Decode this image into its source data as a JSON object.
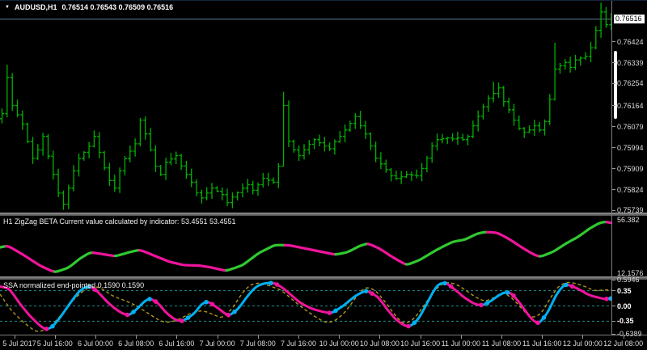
{
  "header": {
    "symbol": "AUDUSD,H1",
    "quotes": "0.76514 0.76543 0.76509 0.76516"
  },
  "zigzag": {
    "title": "H1 ZigZag BETA Current value calculated by indicator: 53.4551 53.4551",
    "axis_max": "56.382",
    "axis_min": "12.1576",
    "current_value": "53.4551 53.4551"
  },
  "ssa": {
    "title": "SSA normalized end-pointed 0.1590 0.1590",
    "axis_labels": [
      "0.5946",
      "0.35",
      "0.00",
      "-0.35",
      "-0.6389"
    ],
    "current_value": "0.1590 0.1590"
  },
  "price_axis": {
    "current": "0.76516",
    "ticks": [
      "0.76424",
      "0.76339",
      "0.76254",
      "0.76164",
      "0.76079",
      "0.75994",
      "0.75909",
      "0.75824",
      "0.75739"
    ]
  },
  "time_axis": {
    "labels": [
      "5 Jul 2017",
      "5 Jul 16:00",
      "6 Jul 00:00",
      "6 Jul 08:00",
      "6 Jul 16:00",
      "7 Jul 00:00",
      "7 Jul 08:00",
      "7 Jul 16:00",
      "10 Jul 00:00",
      "10 Jul 08:00",
      "10 Jul 16:00",
      "11 Jul 00:00",
      "11 Jul 08:00",
      "11 Jul 16:00",
      "12 Jul 00:00",
      "12 Jul 08:00"
    ]
  },
  "colors": {
    "background": "#000000",
    "bar_green": "#00b200",
    "price_line": "#4f6475",
    "zig_up": "#30c930",
    "zig_down": "#f0149c",
    "ssa_up": "#00b0f0",
    "ssa_down": "#f0149c",
    "gold_dashed": "#b0971a",
    "level_teal": "#1f8f8f",
    "axis_text": "#dcdcdc",
    "separator": "#787878"
  },
  "chart_data": [
    {
      "id": "price",
      "type": "ohlc-bars",
      "symbol": "AUDUSD",
      "timeframe": "H1",
      "bar_count": 120,
      "y_current": 0.76516,
      "y_ticks": [
        0.76424,
        0.76339,
        0.76254,
        0.76164,
        0.76079,
        0.75994,
        0.75909,
        0.75824,
        0.75739
      ],
      "close_anchors": [
        [
          0,
          0.76132
        ],
        [
          1,
          0.7628
        ],
        [
          2,
          0.76165
        ],
        [
          4,
          0.7609
        ],
        [
          5,
          0.76018
        ],
        [
          6,
          0.75952
        ],
        [
          7,
          0.75985
        ],
        [
          8,
          0.7604
        ],
        [
          9,
          0.7596
        ],
        [
          10,
          0.75886
        ],
        [
          11,
          0.7581
        ],
        [
          12,
          0.75765
        ],
        [
          13,
          0.7583
        ],
        [
          14,
          0.759
        ],
        [
          15,
          0.7595
        ],
        [
          17,
          0.76
        ],
        [
          18,
          0.7604
        ],
        [
          19,
          0.75975
        ],
        [
          20,
          0.75912
        ],
        [
          21,
          0.75861
        ],
        [
          22,
          0.7583
        ],
        [
          23,
          0.759
        ],
        [
          24,
          0.7595
        ],
        [
          26,
          0.7601
        ],
        [
          27,
          0.76106
        ],
        [
          28,
          0.7605
        ],
        [
          29,
          0.75985
        ],
        [
          30,
          0.75919
        ],
        [
          31,
          0.75886
        ],
        [
          32,
          0.75935
        ],
        [
          34,
          0.75962
        ],
        [
          35,
          0.7592
        ],
        [
          36,
          0.75886
        ],
        [
          37,
          0.75854
        ],
        [
          38,
          0.75811
        ],
        [
          39,
          0.7579
        ],
        [
          41,
          0.7583
        ],
        [
          43,
          0.75804
        ],
        [
          44,
          0.75771
        ],
        [
          45,
          0.75794
        ],
        [
          47,
          0.7583
        ],
        [
          48,
          0.75844
        ],
        [
          49,
          0.75821
        ],
        [
          50,
          0.75844
        ],
        [
          51,
          0.7587
        ],
        [
          53,
          0.75854
        ],
        [
          54,
          0.75919
        ],
        [
          55,
          0.76165
        ],
        [
          56,
          0.7602
        ],
        [
          57,
          0.75985
        ],
        [
          58,
          0.75962
        ],
        [
          59,
          0.75985
        ],
        [
          60,
          0.76008
        ],
        [
          61,
          0.76027
        ],
        [
          63,
          0.76001
        ],
        [
          64,
          0.7599
        ],
        [
          65,
          0.76018
        ],
        [
          66,
          0.7604
        ],
        [
          67,
          0.76066
        ],
        [
          69,
          0.7612
        ],
        [
          70,
          0.76083
        ],
        [
          71,
          0.7605
        ],
        [
          72,
          0.76001
        ],
        [
          73,
          0.75952
        ],
        [
          75,
          0.75905
        ],
        [
          76,
          0.7588
        ],
        [
          77,
          0.7587
        ],
        [
          78,
          0.75876
        ],
        [
          79,
          0.75886
        ],
        [
          81,
          0.7588
        ],
        [
          82,
          0.7591
        ],
        [
          83,
          0.75952
        ],
        [
          84,
          0.76001
        ],
        [
          85,
          0.76027
        ],
        [
          87,
          0.76034
        ],
        [
          88,
          0.7603
        ],
        [
          89,
          0.76034
        ],
        [
          90,
          0.76027
        ],
        [
          91,
          0.7604
        ],
        [
          92,
          0.76083
        ],
        [
          94,
          0.7616
        ],
        [
          95,
          0.76195
        ],
        [
          96,
          0.76214
        ],
        [
          97,
          0.76237
        ],
        [
          98,
          0.76181
        ],
        [
          99,
          0.76148
        ],
        [
          100,
          0.76106
        ],
        [
          101,
          0.76073
        ],
        [
          102,
          0.76057
        ],
        [
          103,
          0.76066
        ],
        [
          104,
          0.76083
        ],
        [
          105,
          0.76066
        ],
        [
          106,
          0.761
        ],
        [
          107,
          0.7619
        ],
        [
          108,
          0.76313
        ],
        [
          110,
          0.7634
        ],
        [
          111,
          0.7632
        ],
        [
          112,
          0.7635
        ],
        [
          114,
          0.76365
        ],
        [
          115,
          0.764
        ],
        [
          116,
          0.7647
        ],
        [
          117,
          0.76545
        ],
        [
          118,
          0.76493
        ],
        [
          119,
          0.76516
        ]
      ],
      "range_overrides": {
        "1": {
          "high": 0.76331
        },
        "12": {
          "low": 0.75742
        },
        "44": {
          "low": 0.75757
        },
        "55": {
          "high": 0.76221,
          "low": 0.75918
        },
        "96": {
          "high": 0.76262
        },
        "108": {
          "high": 0.7642,
          "low": 0.76185
        },
        "117": {
          "high": 0.76582,
          "low": 0.7644
        }
      }
    },
    {
      "id": "zigzag",
      "type": "line",
      "y_max": 56.382,
      "y_min": 12.1576,
      "anchors": [
        [
          0,
          33.6
        ],
        [
          10,
          34.9
        ],
        [
          30,
          26.9
        ],
        [
          50,
          18.2
        ],
        [
          68,
          12.8
        ],
        [
          85,
          16.8
        ],
        [
          100,
          24.9
        ],
        [
          112,
          29.6
        ],
        [
          125,
          28.2
        ],
        [
          143,
          26.2
        ],
        [
          160,
          29.6
        ],
        [
          173,
          31.6
        ],
        [
          190,
          26.9
        ],
        [
          210,
          21.5
        ],
        [
          228,
          18.8
        ],
        [
          247,
          18.5
        ],
        [
          262,
          16.8
        ],
        [
          280,
          14.1
        ],
        [
          300,
          18.8
        ],
        [
          320,
          28.9
        ],
        [
          340,
          35.6
        ],
        [
          358,
          35.3
        ],
        [
          380,
          32.3
        ],
        [
          400,
          29.6
        ],
        [
          415,
          27.5
        ],
        [
          430,
          29.6
        ],
        [
          445,
          34.9
        ],
        [
          455,
          36.9
        ],
        [
          470,
          32.3
        ],
        [
          485,
          25.6
        ],
        [
          503,
          18.8
        ],
        [
          520,
          23.5
        ],
        [
          540,
          31.6
        ],
        [
          560,
          38.3
        ],
        [
          575,
          40.0
        ],
        [
          590,
          45.0
        ],
        [
          600,
          46.4
        ],
        [
          615,
          45.7
        ],
        [
          630,
          40.3
        ],
        [
          645,
          33.6
        ],
        [
          660,
          27.6
        ],
        [
          668,
          25.6
        ],
        [
          685,
          30.3
        ],
        [
          700,
          36.9
        ],
        [
          715,
          42.3
        ],
        [
          730,
          49.7
        ],
        [
          742,
          54.1
        ],
        [
          750,
          54.9
        ],
        [
          757,
          53.5
        ]
      ]
    },
    {
      "id": "ssa",
      "type": "line+dashed",
      "levels": [
        0.35,
        0.0,
        -0.35
      ],
      "y_max": 0.5946,
      "y_min": -0.6389,
      "main_anchors": [
        [
          0,
          0.45
        ],
        [
          12,
          0.39
        ],
        [
          25,
          0.04
        ],
        [
          38,
          -0.25
        ],
        [
          50,
          -0.46
        ],
        [
          57,
          -0.55
        ],
        [
          65,
          -0.48
        ],
        [
          75,
          -0.25
        ],
        [
          88,
          0.1
        ],
        [
          98,
          0.34
        ],
        [
          105,
          0.43
        ],
        [
          112,
          0.45
        ],
        [
          122,
          0.31
        ],
        [
          132,
          0.1
        ],
        [
          142,
          -0.06
        ],
        [
          152,
          -0.18
        ],
        [
          160,
          -0.22
        ],
        [
          170,
          -0.06
        ],
        [
          180,
          0.13
        ],
        [
          186,
          0.18
        ],
        [
          196,
          0.06
        ],
        [
          206,
          -0.17
        ],
        [
          216,
          -0.31
        ],
        [
          225,
          -0.36
        ],
        [
          240,
          -0.18
        ],
        [
          250,
          0.06
        ],
        [
          257,
          0.11
        ],
        [
          268,
          -0.03
        ],
        [
          283,
          -0.24
        ],
        [
          295,
          -0.06
        ],
        [
          305,
          0.2
        ],
        [
          313,
          0.38
        ],
        [
          320,
          0.48
        ],
        [
          330,
          0.53
        ],
        [
          340,
          0.52
        ],
        [
          350,
          0.41
        ],
        [
          360,
          0.25
        ],
        [
          372,
          0.06
        ],
        [
          385,
          -0.06
        ],
        [
          398,
          -0.13
        ],
        [
          410,
          -0.17
        ],
        [
          425,
          0.01
        ],
        [
          440,
          0.24
        ],
        [
          453,
          0.36
        ],
        [
          468,
          0.2
        ],
        [
          480,
          -0.11
        ],
        [
          490,
          -0.32
        ],
        [
          500,
          -0.45
        ],
        [
          507,
          -0.48
        ],
        [
          518,
          -0.29
        ],
        [
          528,
          0.06
        ],
        [
          538,
          0.41
        ],
        [
          544,
          0.53
        ],
        [
          553,
          0.52
        ],
        [
          562,
          0.38
        ],
        [
          575,
          0.18
        ],
        [
          587,
          0.04
        ],
        [
          597,
          0.01
        ],
        [
          607,
          0.11
        ],
        [
          617,
          0.25
        ],
        [
          625,
          0.32
        ],
        [
          633,
          0.29
        ],
        [
          645,
          0.01
        ],
        [
          655,
          -0.25
        ],
        [
          662,
          -0.38
        ],
        [
          667,
          -0.41
        ],
        [
          678,
          -0.13
        ],
        [
          688,
          0.27
        ],
        [
          697,
          0.48
        ],
        [
          700,
          0.5
        ],
        [
          708,
          0.45
        ],
        [
          718,
          0.36
        ],
        [
          728,
          0.25
        ],
        [
          738,
          0.2
        ],
        [
          748,
          0.155
        ],
        [
          757,
          0.175
        ]
      ],
      "gold_anchors": [
        [
          0,
          0.27
        ],
        [
          15,
          -0.13
        ],
        [
          30,
          -0.39
        ],
        [
          45,
          -0.6
        ],
        [
          60,
          -0.53
        ],
        [
          75,
          -0.22
        ],
        [
          90,
          0.13
        ],
        [
          105,
          0.38
        ],
        [
          115,
          0.46
        ],
        [
          125,
          0.41
        ],
        [
          140,
          0.22
        ],
        [
          152,
          0.14
        ],
        [
          165,
          0.04
        ],
        [
          180,
          -0.13
        ],
        [
          195,
          -0.31
        ],
        [
          205,
          -0.39
        ],
        [
          220,
          -0.32
        ],
        [
          235,
          -0.17
        ],
        [
          250,
          -0.1
        ],
        [
          262,
          -0.18
        ],
        [
          275,
          -0.29
        ],
        [
          288,
          -0.04
        ],
        [
          300,
          0.31
        ],
        [
          310,
          0.5
        ],
        [
          322,
          0.53
        ],
        [
          335,
          0.45
        ],
        [
          348,
          0.36
        ],
        [
          360,
          0.17
        ],
        [
          375,
          -0.06
        ],
        [
          390,
          -0.25
        ],
        [
          403,
          -0.39
        ],
        [
          415,
          -0.34
        ],
        [
          428,
          -0.12
        ],
        [
          440,
          0.2
        ],
        [
          452,
          0.45
        ],
        [
          465,
          0.35
        ],
        [
          478,
          0.05
        ],
        [
          490,
          -0.25
        ],
        [
          500,
          -0.43
        ],
        [
          512,
          -0.3
        ],
        [
          522,
          -0.05
        ],
        [
          532,
          0.22
        ],
        [
          542,
          0.45
        ],
        [
          552,
          0.55
        ],
        [
          564,
          0.5
        ],
        [
          576,
          0.36
        ],
        [
          588,
          0.2
        ],
        [
          600,
          0.1
        ],
        [
          612,
          0.2
        ],
        [
          622,
          0.33
        ],
        [
          635,
          0.15
        ],
        [
          648,
          -0.12
        ],
        [
          658,
          -0.29
        ],
        [
          670,
          -0.17
        ],
        [
          680,
          0.17
        ],
        [
          690,
          0.45
        ],
        [
          701,
          0.55
        ],
        [
          712,
          0.52
        ],
        [
          724,
          0.44
        ],
        [
          736,
          0.34
        ],
        [
          748,
          0.37
        ],
        [
          757,
          0.36
        ]
      ]
    }
  ]
}
